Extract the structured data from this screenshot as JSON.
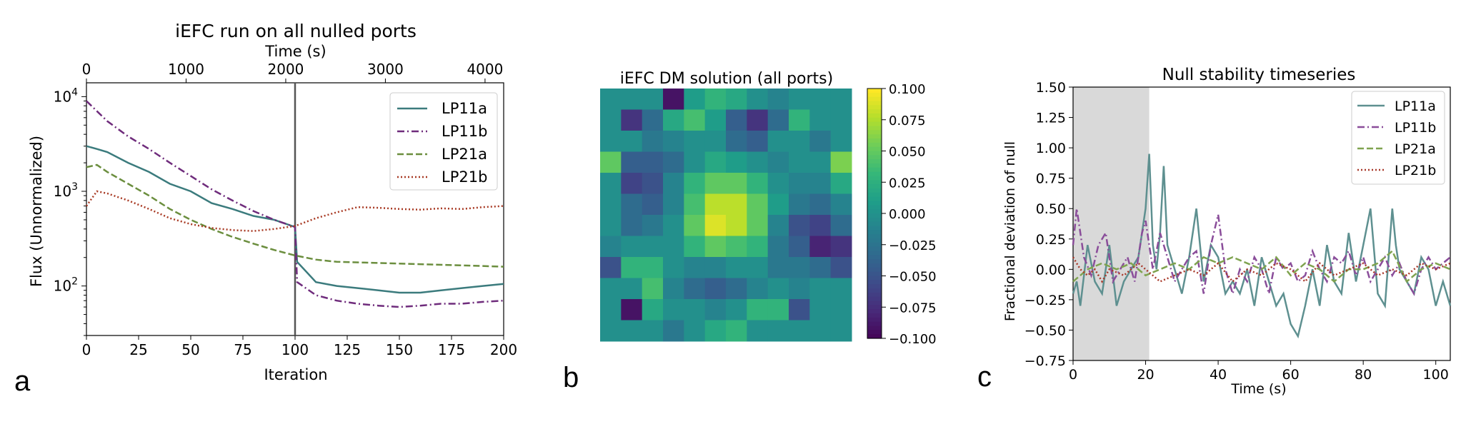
{
  "panel_letters": [
    "a",
    "b",
    "c"
  ],
  "chart_data": [
    {
      "type": "line",
      "title": "iEFC run on all nulled ports",
      "xlabel": "Iteration",
      "ylabel": "Flux (Unnormalized)",
      "xlim": [
        0,
        200
      ],
      "ylim": [
        30,
        14000
      ],
      "yscale": "log",
      "x_ticks": [
        0,
        25,
        50,
        75,
        100,
        125,
        150,
        175,
        200
      ],
      "y_ticks": [
        "10^4",
        "10^3",
        "10^2"
      ],
      "secondary_xlabel": "Time (s)",
      "secondary_xlim": [
        0,
        4187
      ],
      "secondary_x_ticks": [
        0,
        1000,
        2000,
        3000,
        4000
      ],
      "vline_x": 100,
      "legend_position": "top-right",
      "series": [
        {
          "name": "LP11a",
          "color": "#3b7b7d",
          "style": "solid",
          "x": [
            0,
            5,
            10,
            20,
            30,
            40,
            50,
            60,
            70,
            80,
            90,
            100,
            101,
            110,
            120,
            130,
            140,
            150,
            160,
            170,
            180,
            190,
            200
          ],
          "y": [
            3000,
            2800,
            2600,
            2000,
            1600,
            1200,
            1000,
            750,
            650,
            550,
            500,
            420,
            180,
            110,
            100,
            95,
            90,
            85,
            85,
            90,
            95,
            100,
            105
          ]
        },
        {
          "name": "LP11b",
          "color": "#6f2c7c",
          "style": "dashdot",
          "x": [
            0,
            10,
            20,
            30,
            40,
            50,
            60,
            70,
            80,
            90,
            100,
            101,
            110,
            120,
            130,
            140,
            150,
            160,
            170,
            180,
            190,
            200
          ],
          "y": [
            9000,
            5500,
            3800,
            2800,
            2000,
            1450,
            1050,
            800,
            620,
            500,
            420,
            110,
            80,
            70,
            65,
            62,
            60,
            62,
            65,
            65,
            68,
            70
          ]
        },
        {
          "name": "LP21a",
          "color": "#6b8e3e",
          "style": "dashed",
          "x": [
            0,
            5,
            10,
            20,
            30,
            40,
            50,
            60,
            70,
            80,
            90,
            100,
            110,
            120,
            140,
            160,
            180,
            200
          ],
          "y": [
            1800,
            1900,
            1600,
            1200,
            900,
            650,
            500,
            400,
            330,
            280,
            240,
            210,
            190,
            180,
            175,
            170,
            165,
            160
          ]
        },
        {
          "name": "LP21b",
          "color": "#a83a24",
          "style": "dotted",
          "x": [
            0,
            5,
            10,
            20,
            30,
            40,
            50,
            60,
            70,
            80,
            90,
            100,
            110,
            120,
            130,
            140,
            150,
            160,
            170,
            180,
            190,
            200
          ],
          "y": [
            700,
            1000,
            950,
            800,
            650,
            520,
            450,
            410,
            390,
            380,
            400,
            430,
            520,
            600,
            680,
            670,
            650,
            640,
            660,
            650,
            680,
            700
          ]
        }
      ]
    },
    {
      "type": "heatmap",
      "title": "iEFC DM solution (all ports)",
      "colormap": "viridis",
      "vmin": -0.1,
      "vmax": 0.1,
      "colorbar_ticks": [
        "0.100",
        "0.075",
        "0.050",
        "0.025",
        "0.000",
        "−0.025",
        "−0.050",
        "−0.075",
        "−0.100"
      ],
      "colorbar_values": [
        0.1,
        0.075,
        0.05,
        0.025,
        0.0,
        -0.025,
        -0.05,
        -0.075,
        -0.1
      ],
      "grid": [
        [
          0.0,
          0.0,
          0.0,
          -0.09,
          0.01,
          0.03,
          0.02,
          0.0,
          -0.01,
          0.0,
          0.0,
          0.0
        ],
        [
          0.0,
          -0.07,
          -0.03,
          0.02,
          0.04,
          0.01,
          -0.04,
          -0.07,
          -0.03,
          0.03,
          0.0,
          0.0
        ],
        [
          0.0,
          0.0,
          -0.02,
          -0.01,
          0.0,
          0.0,
          -0.03,
          -0.04,
          0.0,
          0.0,
          -0.02,
          0.0
        ],
        [
          0.05,
          -0.04,
          -0.04,
          -0.03,
          0.0,
          0.02,
          0.01,
          0.0,
          -0.01,
          0.0,
          0.0,
          0.06
        ],
        [
          0.0,
          -0.06,
          -0.05,
          -0.01,
          0.03,
          0.05,
          0.05,
          0.03,
          0.0,
          -0.01,
          -0.01,
          0.02
        ],
        [
          0.0,
          -0.03,
          -0.04,
          -0.01,
          0.04,
          0.08,
          0.08,
          0.05,
          0.01,
          -0.02,
          -0.03,
          -0.01
        ],
        [
          0.0,
          -0.03,
          -0.02,
          0.0,
          0.05,
          0.09,
          0.08,
          0.05,
          -0.01,
          -0.05,
          -0.06,
          -0.03
        ],
        [
          -0.01,
          0.0,
          0.0,
          0.0,
          0.03,
          0.05,
          0.04,
          0.03,
          -0.02,
          -0.04,
          -0.08,
          -0.07
        ],
        [
          -0.05,
          0.03,
          0.03,
          0.0,
          -0.01,
          -0.01,
          0.0,
          0.0,
          -0.02,
          -0.02,
          -0.03,
          -0.05
        ],
        [
          0.0,
          0.0,
          0.04,
          -0.01,
          -0.03,
          -0.04,
          -0.03,
          -0.01,
          0.0,
          -0.01,
          0.0,
          0.0
        ],
        [
          0.0,
          -0.09,
          0.02,
          0.0,
          0.0,
          -0.01,
          0.0,
          0.03,
          0.03,
          -0.05,
          0.0,
          0.0
        ],
        [
          0.0,
          0.0,
          0.0,
          -0.02,
          0.0,
          0.02,
          0.03,
          0.0,
          0.0,
          0.0,
          0.0,
          0.0
        ]
      ]
    },
    {
      "type": "line",
      "title": "Null stability timeseries",
      "xlabel": "Time (s)",
      "ylabel": "Fractional deviation of null",
      "xlim": [
        0,
        104
      ],
      "ylim": [
        -0.75,
        1.5
      ],
      "x_ticks": [
        0,
        20,
        40,
        60,
        80,
        100
      ],
      "y_ticks": [
        "−0.75",
        "−0.50",
        "−0.25",
        "0.00",
        "0.25",
        "0.50",
        "0.75",
        "1.00",
        "1.25",
        "1.50"
      ],
      "y_tick_values": [
        -0.75,
        -0.5,
        -0.25,
        0,
        0.25,
        0.5,
        0.75,
        1.0,
        1.25,
        1.5
      ],
      "shaded_region": [
        0,
        21
      ],
      "legend_position": "top-right",
      "series": [
        {
          "name": "LP11a",
          "color": "#5e9090",
          "style": "solid",
          "x": [
            0,
            1,
            2,
            4,
            6,
            8,
            10,
            12,
            14,
            16,
            18,
            19,
            20,
            21,
            22,
            23,
            24,
            25,
            26,
            28,
            30,
            32,
            34,
            36,
            38,
            40,
            42,
            44,
            46,
            48,
            50,
            52,
            54,
            56,
            58,
            60,
            62,
            64,
            66,
            68,
            70,
            72,
            74,
            76,
            78,
            80,
            82,
            84,
            86,
            88,
            89,
            90,
            92,
            94,
            96,
            98,
            100,
            102,
            104
          ],
          "y": [
            -0.2,
            -0.1,
            -0.3,
            0.2,
            -0.1,
            -0.2,
            0.2,
            -0.3,
            -0.1,
            0.0,
            0.1,
            0.3,
            0.5,
            0.95,
            0.2,
            0.0,
            0.3,
            0.85,
            0.2,
            0.0,
            -0.2,
            0.1,
            0.5,
            -0.1,
            0.2,
            0.1,
            -0.2,
            -0.1,
            -0.2,
            0.0,
            -0.3,
            0.1,
            -0.1,
            -0.3,
            -0.2,
            -0.45,
            -0.55,
            -0.3,
            0.0,
            -0.3,
            0.2,
            -0.1,
            -0.2,
            0.3,
            -0.1,
            0.2,
            0.5,
            -0.2,
            -0.3,
            0.5,
            0.2,
            0.0,
            -0.1,
            -0.2,
            0.1,
            0.0,
            -0.3,
            -0.1,
            -0.3
          ]
        },
        {
          "name": "LP11b",
          "color": "#8a4d9a",
          "style": "dashdot",
          "x": [
            0,
            1,
            2,
            3,
            5,
            7,
            9,
            11,
            13,
            15,
            17,
            19,
            20,
            22,
            24,
            26,
            28,
            30,
            32,
            34,
            36,
            38,
            40,
            42,
            44,
            46,
            48,
            50,
            52,
            54,
            56,
            58,
            60,
            62,
            64,
            66,
            68,
            70,
            72,
            74,
            76,
            78,
            80,
            82,
            84,
            86,
            88,
            90,
            92,
            94,
            96,
            98,
            100,
            102,
            104
          ],
          "y": [
            0.2,
            0.5,
            0.3,
            0.1,
            -0.05,
            0.2,
            0.3,
            -0.1,
            0.0,
            0.1,
            -0.1,
            0.3,
            0.4,
            0.0,
            0.3,
            0.1,
            -0.1,
            0.0,
            0.1,
            0.15,
            -0.2,
            0.2,
            0.45,
            0.0,
            -0.2,
            0.0,
            -0.1,
            0.1,
            0.0,
            -0.2,
            0.1,
            0.0,
            0.05,
            -0.1,
            -0.05,
            0.15,
            0.0,
            -0.1,
            0.1,
            0.05,
            0.15,
            -0.05,
            0.1,
            -0.1,
            0.0,
            0.1,
            -0.05,
            0.05,
            -0.1,
            -0.2,
            0.0,
            0.1,
            0.0,
            0.05,
            0.1
          ]
        },
        {
          "name": "LP21a",
          "color": "#7fa34f",
          "style": "dashed",
          "x": [
            0,
            4,
            8,
            12,
            16,
            20,
            24,
            28,
            32,
            36,
            40,
            44,
            48,
            52,
            56,
            60,
            64,
            68,
            72,
            76,
            80,
            84,
            88,
            92,
            96,
            100,
            104
          ],
          "y": [
            -0.1,
            0.0,
            0.05,
            0.0,
            0.05,
            -0.05,
            0.0,
            0.05,
            0.0,
            0.1,
            0.05,
            0.1,
            0.05,
            0.0,
            0.1,
            -0.05,
            0.05,
            0.0,
            -0.1,
            0.0,
            0.0,
            0.05,
            0.15,
            -0.1,
            0.0,
            0.05,
            0.0
          ]
        },
        {
          "name": "LP21b",
          "color": "#a8392a",
          "style": "dotted",
          "x": [
            0,
            2,
            4,
            6,
            8,
            10,
            14,
            18,
            20,
            24,
            28,
            32,
            36,
            40,
            44,
            48,
            52,
            56,
            60,
            64,
            68,
            72,
            76,
            80,
            84,
            88,
            92,
            96,
            100,
            104
          ],
          "y": [
            0.1,
            0.0,
            -0.05,
            0.0,
            -0.1,
            0.0,
            -0.05,
            0.05,
            0.0,
            -0.1,
            -0.05,
            0.0,
            -0.05,
            0.05,
            -0.1,
            0.0,
            -0.05,
            0.05,
            0.0,
            -0.1,
            0.05,
            -0.05,
            0.0,
            0.05,
            -0.05,
            0.0,
            -0.05,
            0.05,
            0.0,
            0.05
          ]
        }
      ]
    }
  ]
}
